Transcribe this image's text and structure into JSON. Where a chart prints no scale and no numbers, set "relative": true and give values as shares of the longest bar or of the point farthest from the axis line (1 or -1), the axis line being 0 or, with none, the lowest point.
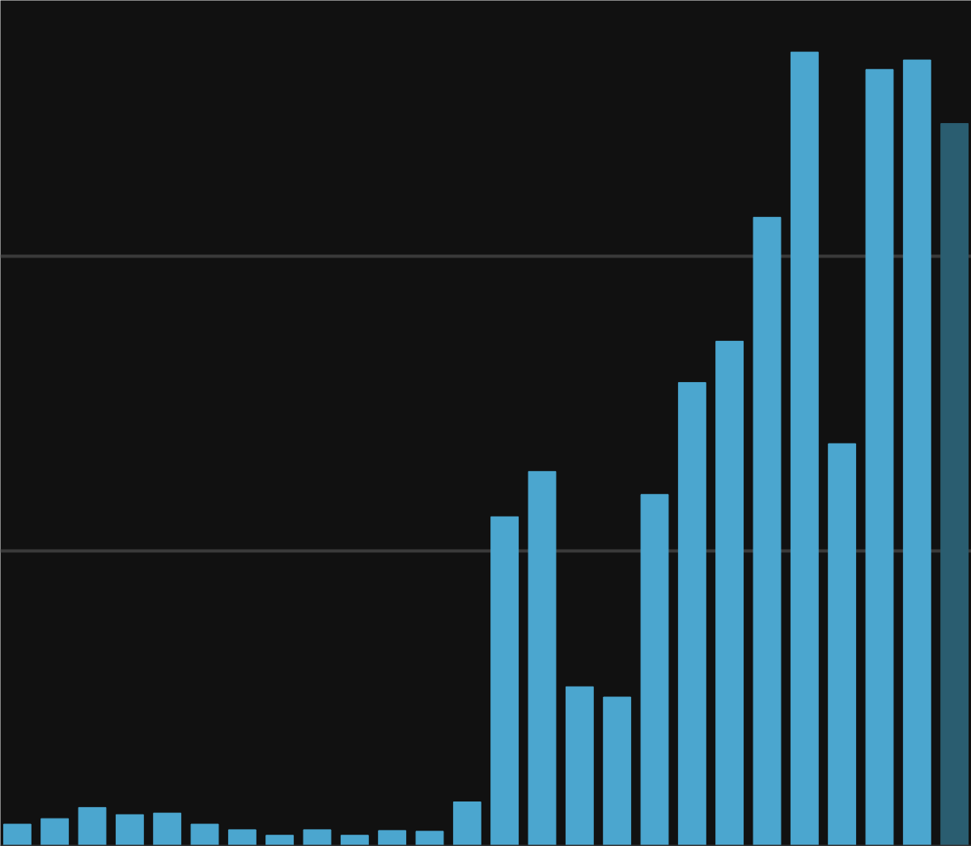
{
  "chart_data": {
    "type": "bar",
    "relative": true,
    "categories": [
      null,
      null,
      null,
      null,
      null,
      null,
      null,
      null,
      null,
      null,
      null,
      null,
      null,
      null,
      null,
      null,
      null,
      null,
      null,
      null,
      null,
      null,
      null,
      null,
      null,
      null
    ],
    "values": [
      0.028,
      0.035,
      0.049,
      0.04,
      0.042,
      0.028,
      0.021,
      0.014,
      0.021,
      0.014,
      0.02,
      0.019,
      0.056,
      0.415,
      0.472,
      0.201,
      0.188,
      0.443,
      0.584,
      0.636,
      0.792,
      1,
      0.507,
      0.978,
      0.99,
      0.91
    ],
    "colors": [
      "#4ba6cf",
      "#4ba6cf",
      "#4ba6cf",
      "#4ba6cf",
      "#4ba6cf",
      "#4ba6cf",
      "#4ba6cf",
      "#4ba6cf",
      "#4ba6cf",
      "#4ba6cf",
      "#4ba6cf",
      "#4ba6cf",
      "#4ba6cf",
      "#4ba6cf",
      "#4ba6cf",
      "#4ba6cf",
      "#4ba6cf",
      "#4ba6cf",
      "#4ba6cf",
      "#4ba6cf",
      "#4ba6cf",
      "#4ba6cf",
      "#4ba6cf",
      "#4ba6cf",
      "#4ba6cf",
      "#2a5d70"
    ],
    "ref_lines": [
      {
        "axis": "y",
        "value": 0.372,
        "color": "#3a3a3a"
      },
      {
        "axis": "y",
        "value": 0.743,
        "color": "#3a3a3a"
      }
    ],
    "tick_labels": false
  }
}
